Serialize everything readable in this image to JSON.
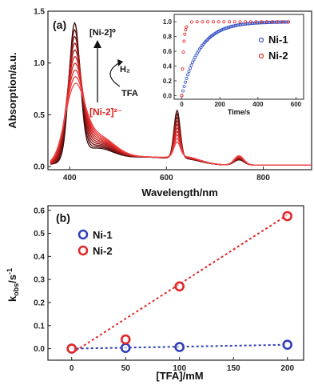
{
  "chart_data": [
    {
      "type": "line",
      "panel_label": "(a)",
      "xlabel": "Wavelength/nm",
      "ylabel": "Absorption/a.u.",
      "xlim": [
        355,
        900
      ],
      "ylim": [
        -0.03,
        1.5
      ],
      "xticks": [
        400,
        600,
        800
      ],
      "yticks": [
        0.0,
        0.5,
        1.0,
        1.5
      ],
      "yticklabels": [
        "0.0",
        "0.5",
        "1.0",
        "1.5"
      ],
      "series_count": 10,
      "series_colors": [
        "#3a0a0a",
        "#5a1010",
        "#7a1414",
        "#961818",
        "#ad1c1c",
        "#c21f1f",
        "#d42424",
        "#e02a2a",
        "#e83a3a",
        "#f04848"
      ],
      "peaks": [
        {
          "center": 410,
          "start": 1.29,
          "end": 0.64
        },
        {
          "center": 622,
          "start": 0.46,
          "end": 0.14
        },
        {
          "center": 750,
          "start": 0.05,
          "end": 0.09
        }
      ],
      "annotations": {
        "top_species": "[Ni-2]⁰",
        "reagent_out": "H₂",
        "reagent_in": "TFA",
        "bottom_species": "[Ni-2]²⁻"
      },
      "inset": {
        "type": "scatter",
        "xlabel": "Time/s",
        "ylabel": "",
        "xlim": [
          -40,
          640
        ],
        "ylim": [
          -0.05,
          1.1
        ],
        "xticks": [
          0,
          200,
          400,
          600
        ],
        "yticks": [
          0.0,
          0.2,
          0.4,
          0.6,
          0.8,
          1.0
        ],
        "yticklabels": [
          "0.0",
          "0.2",
          "0.4",
          "0.6",
          "0.8",
          "1.0"
        ],
        "series": [
          {
            "name": "Ni-1",
            "color": "#3a55c8",
            "model": "1 - exp(-t/95)",
            "t_range": [
              0,
              560
            ],
            "points": 90
          },
          {
            "name": "Ni-2",
            "color": "#e03030",
            "model": "1 - exp(-t/9)",
            "t_range": [
              0,
              560
            ],
            "points": 26
          }
        ]
      }
    },
    {
      "type": "scatter",
      "panel_label": "(b)",
      "xlabel": "[TFA]/mM",
      "ylabel": "k_obs/s⁻¹",
      "ylabel_main": "k",
      "ylabel_sub": "obs",
      "ylabel_tail": "/s",
      "ylabel_sup": "-1",
      "xlim": [
        -22,
        215
      ],
      "ylim": [
        -0.05,
        0.62
      ],
      "xticks": [
        0,
        50,
        100,
        150,
        200
      ],
      "yticks": [
        0.0,
        0.1,
        0.2,
        0.3,
        0.4,
        0.5,
        0.6
      ],
      "yticklabels": [
        "0.0",
        "0.1",
        "0.2",
        "0.3",
        "0.4",
        "0.5",
        "0.6"
      ],
      "series": [
        {
          "name": "Ni-1",
          "color": "#2f3fb8",
          "x": [
            0,
            50,
            100,
            200
          ],
          "y": [
            0.0,
            0.003,
            0.007,
            0.017
          ],
          "fit": [
            [
              0,
              0.0
            ],
            [
              200,
              0.017
            ]
          ]
        },
        {
          "name": "Ni-2",
          "color": "#e02828",
          "x": [
            0,
            50,
            100,
            200
          ],
          "y": [
            0.0,
            0.04,
            0.27,
            0.575
          ],
          "fit": [
            [
              0,
              -0.02
            ],
            [
              200,
              0.58
            ]
          ]
        }
      ]
    }
  ]
}
